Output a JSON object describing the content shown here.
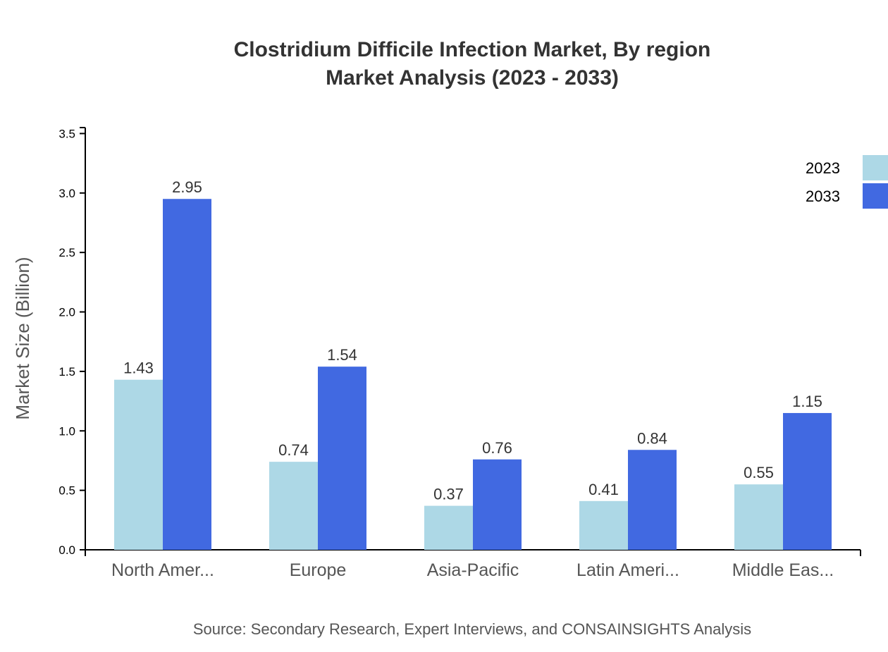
{
  "chart_data": {
    "type": "bar",
    "title": "Clostridium Difficile Infection Market, By region",
    "subtitle": "Market Analysis (2023 - 2033)",
    "xlabel": "",
    "ylabel": "Market Size (Billion)",
    "categories": [
      "North Amer...",
      "Europe",
      "Asia-Pacific",
      "Latin Ameri...",
      "Middle Eas..."
    ],
    "series": [
      {
        "name": "2023",
        "color": "#add8e6",
        "values": [
          1.43,
          0.74,
          0.37,
          0.41,
          0.55
        ]
      },
      {
        "name": "2033",
        "color": "#4169e1",
        "values": [
          2.95,
          1.54,
          0.76,
          0.84,
          1.15
        ]
      }
    ],
    "ylim": [
      0,
      3.55
    ],
    "yticks": [
      "0.0",
      "0.5",
      "1.0",
      "1.5",
      "2.0",
      "2.5",
      "3.0",
      "3.5"
    ],
    "grid": false,
    "legend_position": "top-right",
    "source": "Source: Secondary Research, Expert Interviews, and CONSAINSIGHTS Analysis"
  }
}
